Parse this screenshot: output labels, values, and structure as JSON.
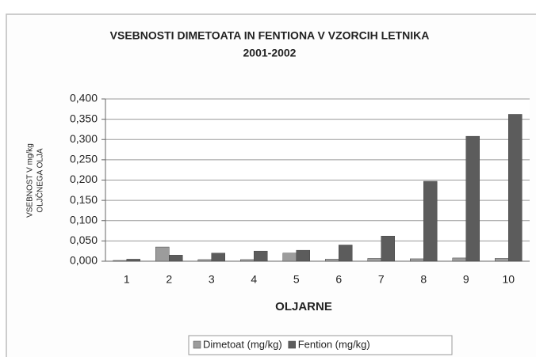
{
  "chart_data": {
    "type": "bar",
    "title": "VSEBNOSTI DIMETOATA IN FENTIONA V VZORCIH LETNIKA",
    "subtitle": "2001-2002",
    "xlabel": "OLJARNE",
    "ylabel": [
      "VSEBNOST V mg/kg",
      "OLJČNEGA OLJA"
    ],
    "categories": [
      "1",
      "2",
      "3",
      "4",
      "5",
      "6",
      "7",
      "8",
      "9",
      "10"
    ],
    "series": [
      {
        "name": "Dimetoat (mg/kg)",
        "color": "#9c9c9c",
        "values": [
          0.002,
          0.035,
          0.004,
          0.004,
          0.02,
          0.005,
          0.007,
          0.006,
          0.008,
          0.007
        ]
      },
      {
        "name": "Fention (mg/kg)",
        "color": "#5c5c5c",
        "values": [
          0.005,
          0.015,
          0.02,
          0.025,
          0.027,
          0.04,
          0.062,
          0.197,
          0.308,
          0.362
        ]
      }
    ],
    "ylim": [
      0,
      0.4
    ],
    "yticks": [
      {
        "value": 0,
        "label": "0,000"
      },
      {
        "value": 0.05,
        "label": "0,050"
      },
      {
        "value": 0.1,
        "label": "0,100"
      },
      {
        "value": 0.15,
        "label": "0,150"
      },
      {
        "value": 0.2,
        "label": "0,200"
      },
      {
        "value": 0.25,
        "label": "0,250"
      },
      {
        "value": 0.3,
        "label": "0,300"
      },
      {
        "value": 0.35,
        "label": "0,350"
      },
      {
        "value": 0.4,
        "label": "0,400"
      }
    ],
    "grid": true,
    "legend": "bottom"
  }
}
